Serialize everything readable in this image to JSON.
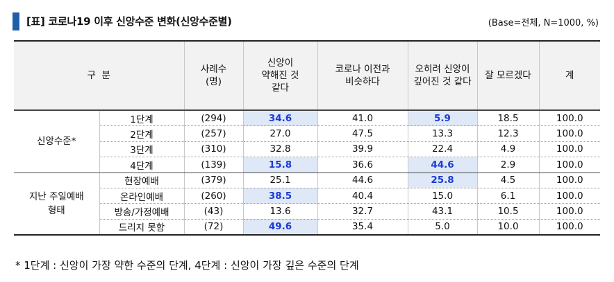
{
  "title": "[표] 코로나19 이후 신앙수준 변화(신앙수준별)",
  "base": "(Base=전체, N=1000, %)",
  "headers": {
    "division": "구  분",
    "cases": "사례수\n(명)",
    "col1": "신앙이\n약해진 것\n같다",
    "col2": "코로나 이전과\n비슷하다",
    "col3": "오히려 신앙이\n깊어진 것 같다",
    "col4": "잘 모르겠다",
    "col5": "계"
  },
  "groups": {
    "faith": "신앙수준*",
    "worship": "지난 주일예배\n형태"
  },
  "rows": [
    {
      "label": "1단계",
      "n": "(294)",
      "v1": "34.6",
      "v2": "41.0",
      "v3": "5.9",
      "v4": "18.5",
      "v5": "100.0"
    },
    {
      "label": "2단계",
      "n": "(257)",
      "v1": "27.0",
      "v2": "47.5",
      "v3": "13.3",
      "v4": "12.3",
      "v5": "100.0"
    },
    {
      "label": "3단계",
      "n": "(310)",
      "v1": "32.8",
      "v2": "39.9",
      "v3": "22.4",
      "v4": "4.9",
      "v5": "100.0"
    },
    {
      "label": "4단계",
      "n": "(139)",
      "v1": "15.8",
      "v2": "36.6",
      "v3": "44.6",
      "v4": "2.9",
      "v5": "100.0"
    },
    {
      "label": "현장예배",
      "n": "(379)",
      "v1": "25.1",
      "v2": "44.6",
      "v3": "25.8",
      "v4": "4.5",
      "v5": "100.0"
    },
    {
      "label": "온라인예배",
      "n": "(260)",
      "v1": "38.5",
      "v2": "40.4",
      "v3": "15.0",
      "v4": "6.1",
      "v5": "100.0"
    },
    {
      "label": "방송/가정예배",
      "n": "(43)",
      "v1": "13.6",
      "v2": "32.7",
      "v3": "43.1",
      "v4": "10.5",
      "v5": "100.0"
    },
    {
      "label": "드리지 못함",
      "n": "(72)",
      "v1": "49.6",
      "v2": "35.4",
      "v3": "5.0",
      "v4": "10.0",
      "v5": "100.0"
    }
  ],
  "footnote": "* 1단계 : 신앙이 가장 약한 수준의 단계, 4단계 : 신앙이 가장 깊은 수준의 단계",
  "colors": {
    "accent_bar": "#1f5fa8",
    "highlight_bg": "#dfe8f7",
    "highlight_text": "#1a3bd6"
  }
}
